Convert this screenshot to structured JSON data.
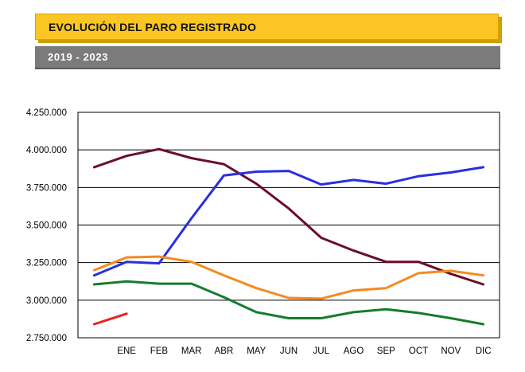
{
  "header": {
    "title": "EVOLUCIÓN DEL PARO REGISTRADO",
    "subtitle": "2019 - 2023"
  },
  "chart_data": {
    "type": "line",
    "categories": [
      "",
      "ENE",
      "FEB",
      "MAR",
      "ABR",
      "MAY",
      "JUN",
      "JUL",
      "AGO",
      "SEP",
      "OCT",
      "NOV",
      "DIC"
    ],
    "ylim": [
      2750000,
      4250000
    ],
    "yticks": [
      2750000,
      3000000,
      3250000,
      3500000,
      3750000,
      4000000,
      4250000
    ],
    "ytick_labels": [
      "2.750.000",
      "3.000.000",
      "3.250.000",
      "3.500.000",
      "3.750.000",
      "4.000.000",
      "4.250.000"
    ],
    "grid": "horizontal",
    "legend": "none",
    "series": [
      {
        "color": "#6b0d2a",
        "values": [
          3885000,
          3960000,
          4005000,
          3945000,
          3905000,
          3775000,
          3610000,
          3415000,
          3330000,
          3255000,
          3255000,
          3175000,
          3105000
        ]
      },
      {
        "color": "#2a2ee0",
        "values": [
          3165000,
          3255000,
          3245000,
          3545000,
          3830000,
          3855000,
          3860000,
          3770000,
          3800000,
          3775000,
          3825000,
          3850000,
          3885000
        ]
      },
      {
        "color": "#f58a1f",
        "values": [
          3200000,
          3285000,
          3290000,
          3255000,
          3165000,
          3080000,
          3015000,
          3010000,
          3065000,
          3080000,
          3180000,
          3195000,
          3165000
        ]
      },
      {
        "color": "#167d2c",
        "values": [
          3105000,
          3125000,
          3110000,
          3110000,
          3020000,
          2920000,
          2880000,
          2880000,
          2920000,
          2940000,
          2915000,
          2880000,
          2840000
        ]
      },
      {
        "color": "#e8231f",
        "values": [
          2840000,
          2910000,
          null,
          null,
          null,
          null,
          null,
          null,
          null,
          null,
          null,
          null,
          null
        ]
      }
    ]
  }
}
